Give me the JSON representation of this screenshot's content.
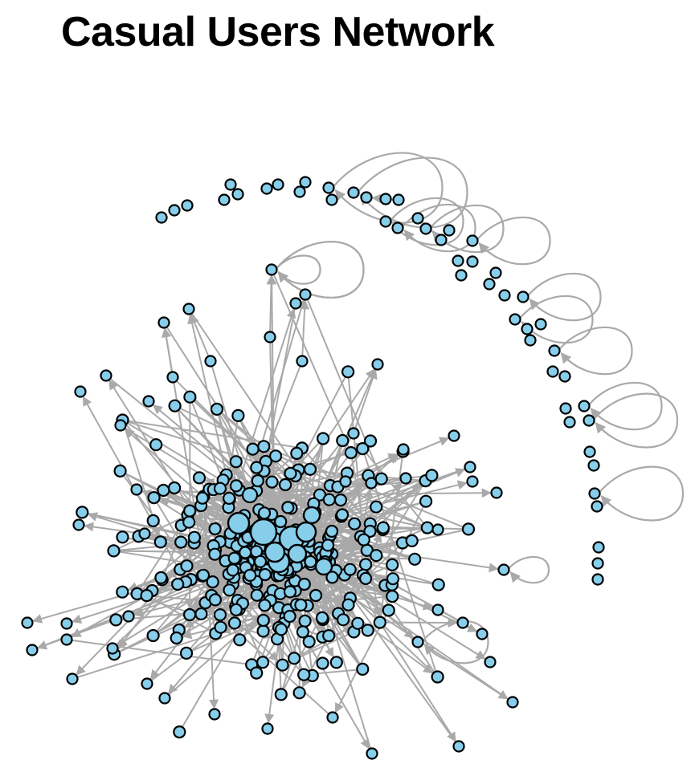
{
  "title": "Casual Users Network",
  "style": {
    "node_fill": "#87ceeb",
    "node_stroke": "#000000",
    "edge_color": "#a9a9a9"
  }
}
